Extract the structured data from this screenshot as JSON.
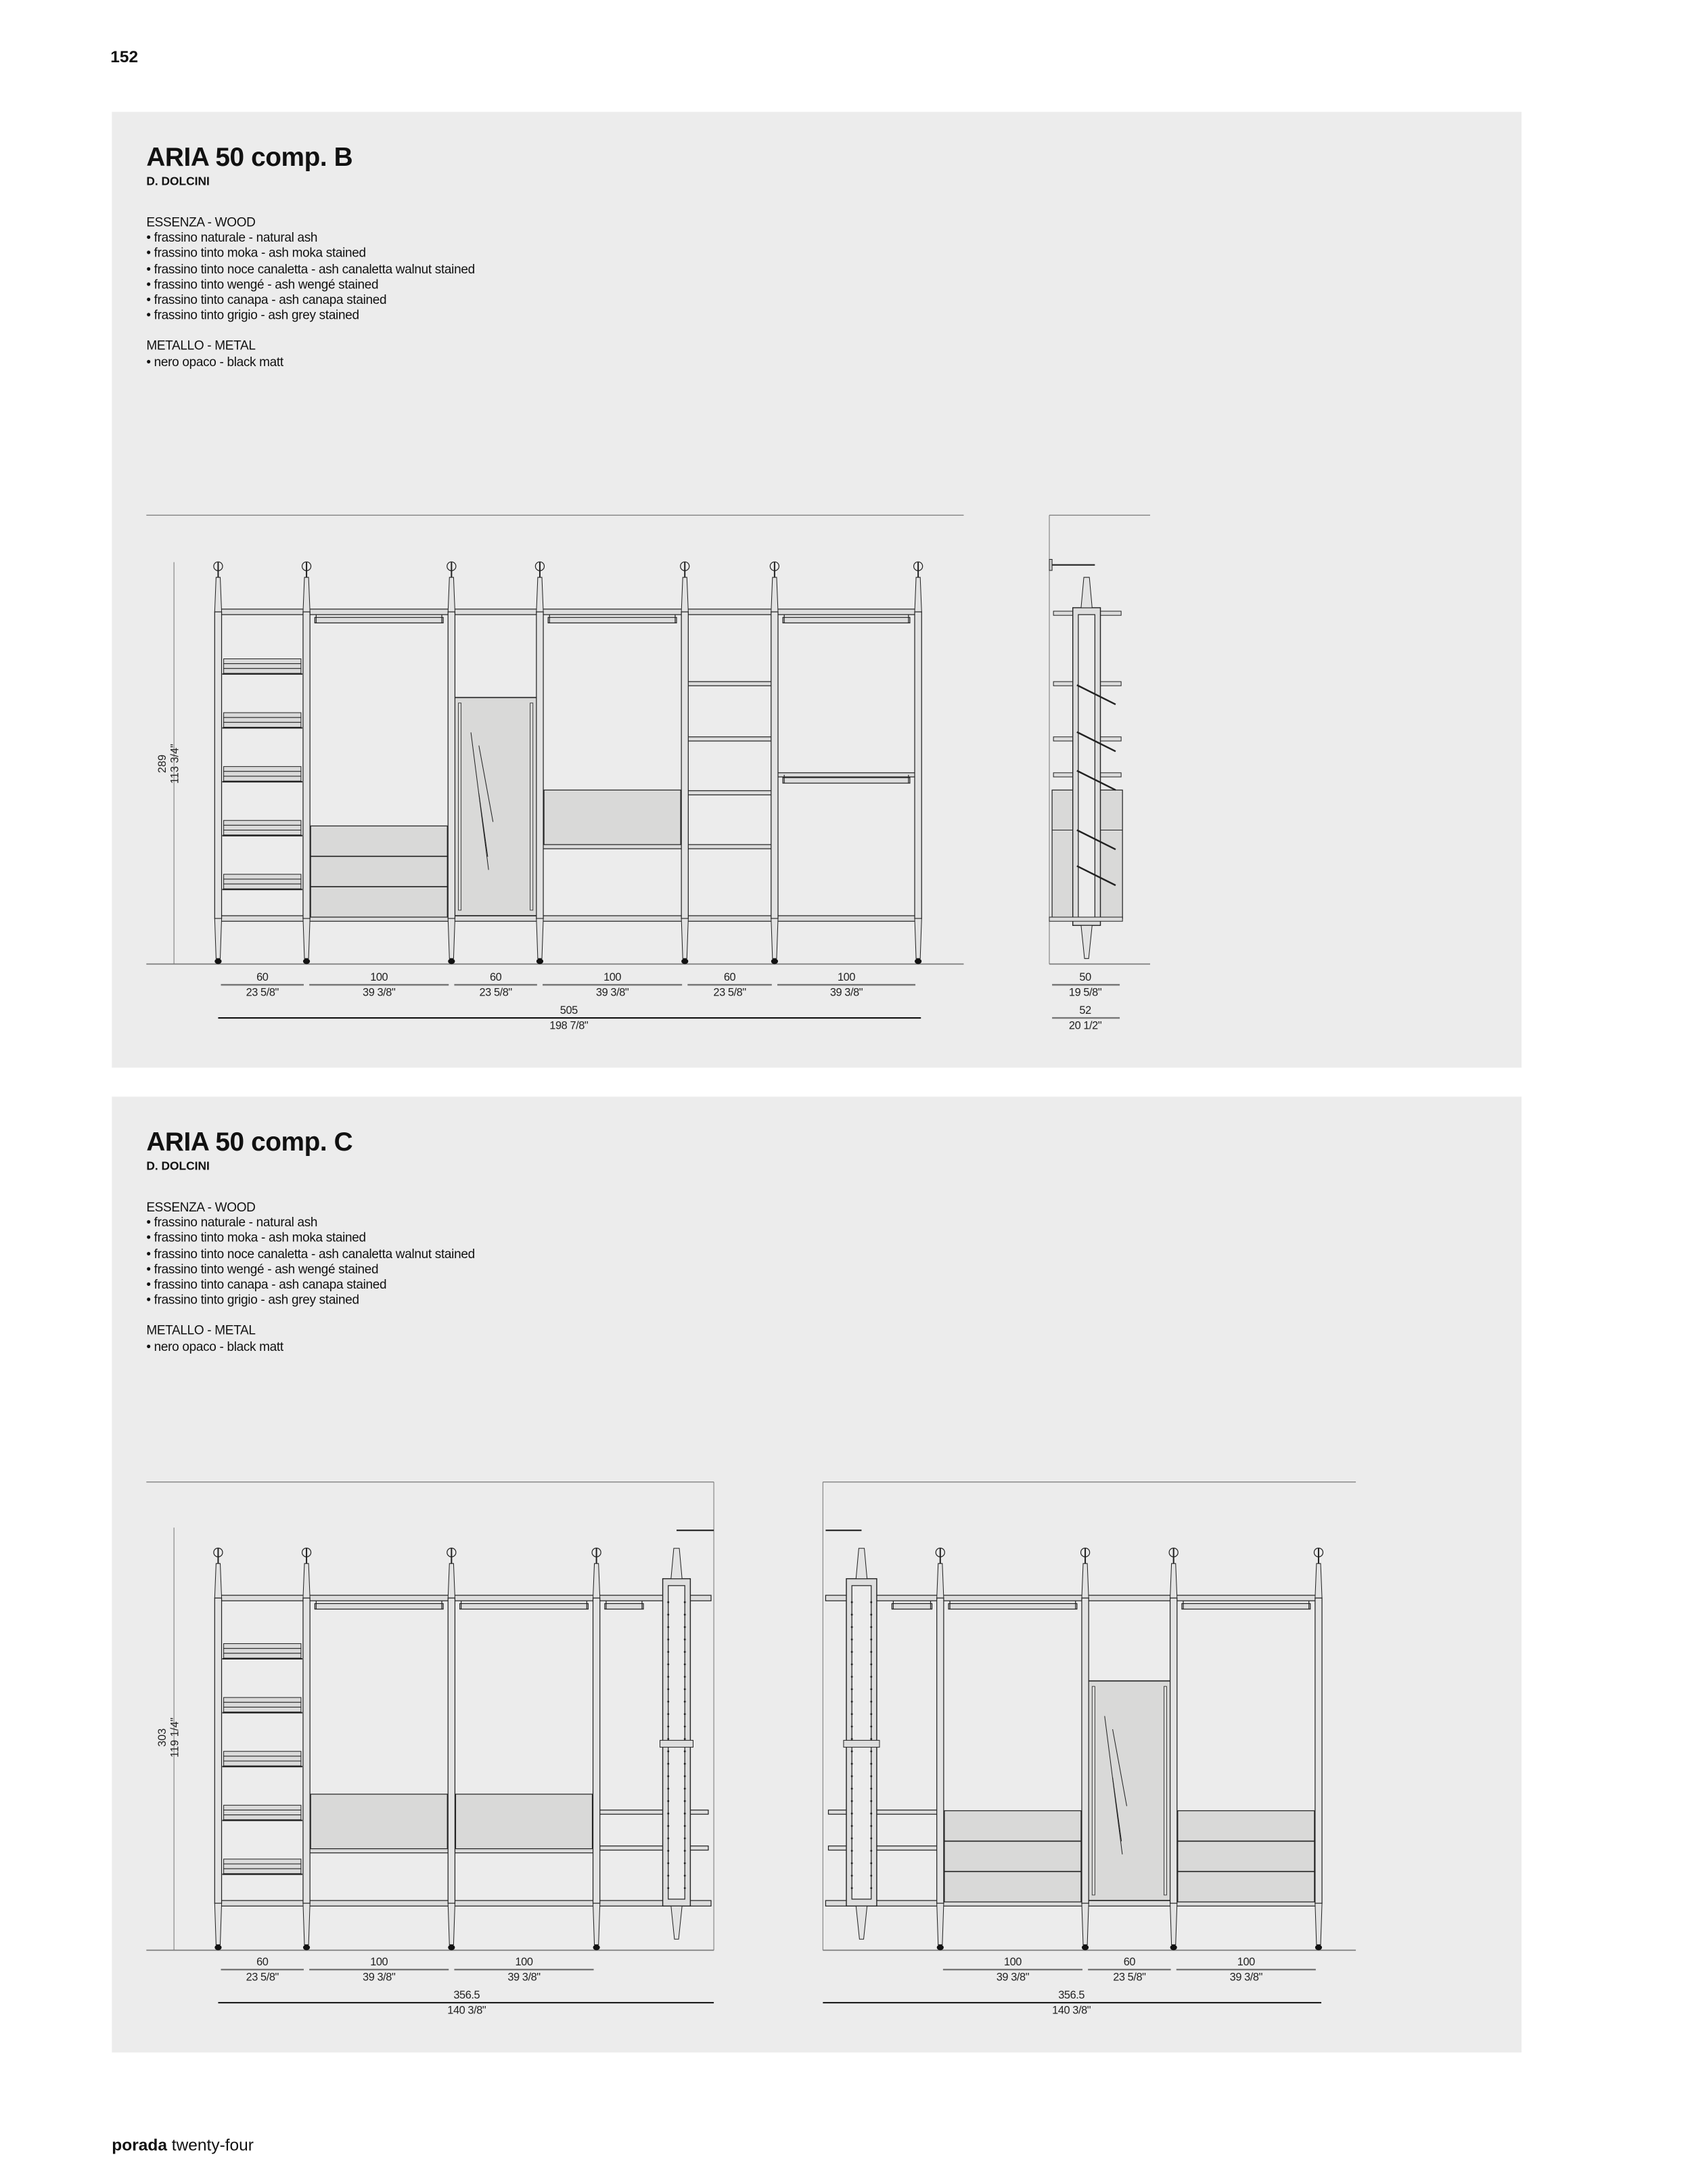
{
  "page_number": "152",
  "panels": [
    {
      "title": "ARIA 50 comp. B",
      "designer": "D. DOLCINI",
      "wood_heading": "ESSENZA - WOOD",
      "wood_items": [
        "• frassino naturale - natural ash",
        "• frassino tinto moka - ash moka stained",
        "• frassino tinto noce canaletta - ash canaletta walnut stained",
        "• frassino tinto wengé - ash wengé stained",
        "• frassino tinto canapa - ash canapa stained",
        "• frassino tinto grigio - ash grey stained"
      ],
      "metal_heading": "METALLO - METAL",
      "metal_items": [
        "• nero opaco - black matt"
      ],
      "height": {
        "cm": "289",
        "in": "113 3/4\""
      },
      "front_dims": [
        {
          "cm": "60",
          "in": "23 5/8\""
        },
        {
          "cm": "100",
          "in": "39 3/8\""
        },
        {
          "cm": "60",
          "in": "23 5/8\""
        },
        {
          "cm": "100",
          "in": "39 3/8\""
        },
        {
          "cm": "60",
          "in": "23 5/8\""
        },
        {
          "cm": "100",
          "in": "39 3/8\""
        }
      ],
      "front_total": {
        "cm": "505",
        "in": "198 7/8\""
      },
      "side_dims": [
        {
          "cm": "50",
          "in": "19 5/8\""
        },
        {
          "cm": "52",
          "in": "20 1/2\""
        }
      ]
    },
    {
      "title": "ARIA 50 comp. C",
      "designer": "D. DOLCINI",
      "wood_heading": "ESSENZA - WOOD",
      "wood_items": [
        "• frassino naturale - natural ash",
        "• frassino tinto moka - ash moka stained",
        "• frassino tinto noce canaletta - ash canaletta walnut stained",
        "• frassino tinto wengé - ash wengé stained",
        "• frassino tinto canapa - ash canapa stained",
        "• frassino tinto grigio - ash grey stained"
      ],
      "metal_heading": "METALLO - METAL",
      "metal_items": [
        "• nero opaco - black matt"
      ],
      "height": {
        "cm": "303",
        "in": "119 1/4\""
      },
      "left_dims": [
        {
          "cm": "60",
          "in": "23 5/8\""
        },
        {
          "cm": "100",
          "in": "39 3/8\""
        },
        {
          "cm": "100",
          "in": "39 3/8\""
        }
      ],
      "left_total": {
        "cm": "356.5",
        "in": "140 3/8\""
      },
      "right_dims": [
        {
          "cm": "100",
          "in": "39 3/8\""
        },
        {
          "cm": "60",
          "in": "23 5/8\""
        },
        {
          "cm": "100",
          "in": "39 3/8\""
        }
      ],
      "right_total": {
        "cm": "356.5",
        "in": "140 3/8\""
      }
    }
  ],
  "footer": {
    "brand": "porada",
    "edition": "twenty-four"
  },
  "colors": {
    "panel": "#ececec",
    "line": "#222222",
    "fill": "#d9d9d8"
  }
}
